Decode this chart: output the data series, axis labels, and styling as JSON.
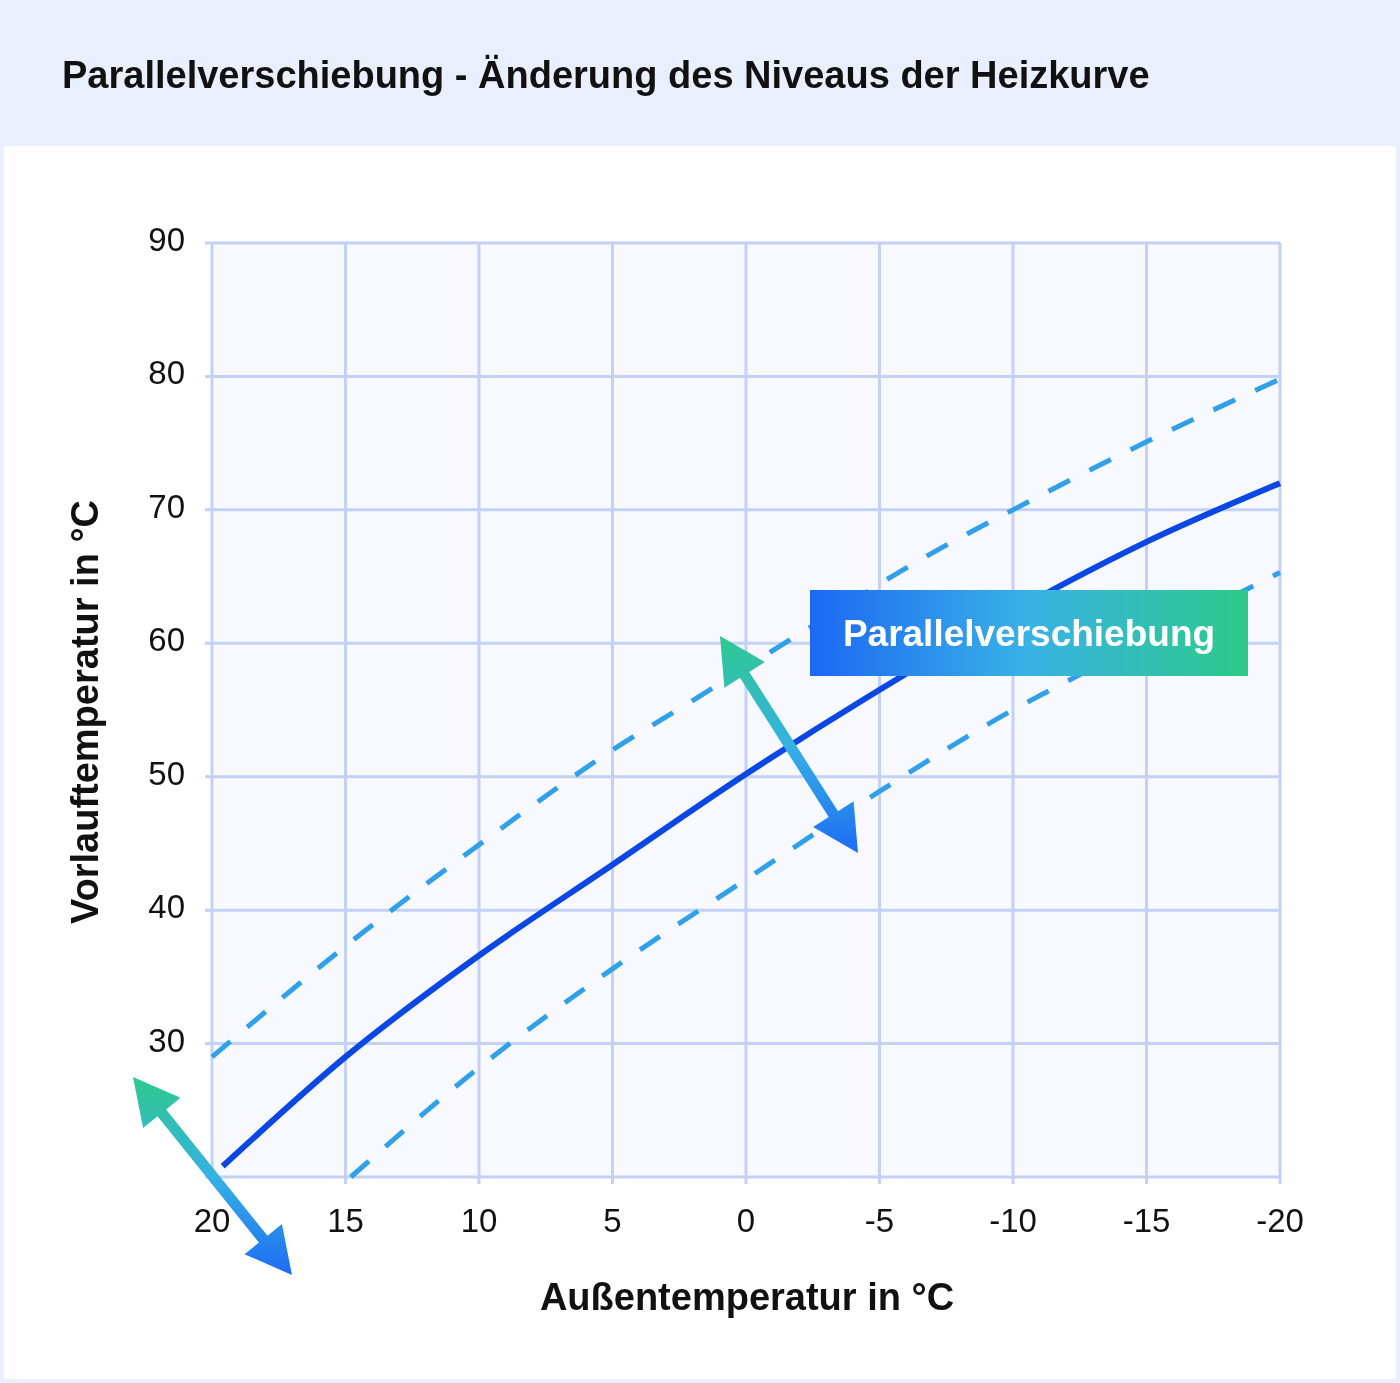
{
  "chart_data": {
    "type": "line",
    "title": "Parallelverschiebung - Änderung des Niveaus der Heizkurve",
    "xlabel": "Außentemperatur in °C",
    "ylabel": "Vorlauftemperatur in °C",
    "annotations": [
      "Parallelverschiebung"
    ],
    "xlim": [
      20,
      -20
    ],
    "xticks": [
      20,
      15,
      10,
      5,
      0,
      -5,
      -10,
      -15,
      -20
    ],
    "ylim": [
      20,
      90
    ],
    "yticks": [
      {
        "value": 20,
        "label": null
      },
      30,
      40,
      50,
      60,
      70,
      80,
      90
    ],
    "grid": true,
    "series": [
      {
        "color": "#30a0e8",
        "line_style": "dashed",
        "x": [
          20,
          15,
          10,
          5,
          2,
          -2,
          -7,
          -10,
          -15,
          -20
        ],
        "values": [
          29,
          37.3,
          44.9,
          52,
          55.7,
          60.7,
          66.8,
          70,
          75.1,
          79.8
        ]
      },
      {
        "color": "#0a47e4",
        "line_style": "solid",
        "x": [
          19.6,
          15,
          10,
          5,
          0,
          -4.5,
          -13,
          -15,
          -20
        ],
        "values": [
          20.8,
          29,
          36.6,
          43.4,
          50.2,
          55.9,
          65.6,
          67.6,
          72
        ]
      },
      {
        "color": "#30a0e8",
        "line_style": "dashed",
        "x": [
          14.8,
          10,
          5,
          0,
          -5,
          -10,
          -11.5,
          -19.2,
          -20
        ],
        "values": [
          20,
          28.2,
          35.6,
          42.3,
          48.9,
          55,
          56.6,
          64.5,
          65.3
        ]
      }
    ]
  }
}
